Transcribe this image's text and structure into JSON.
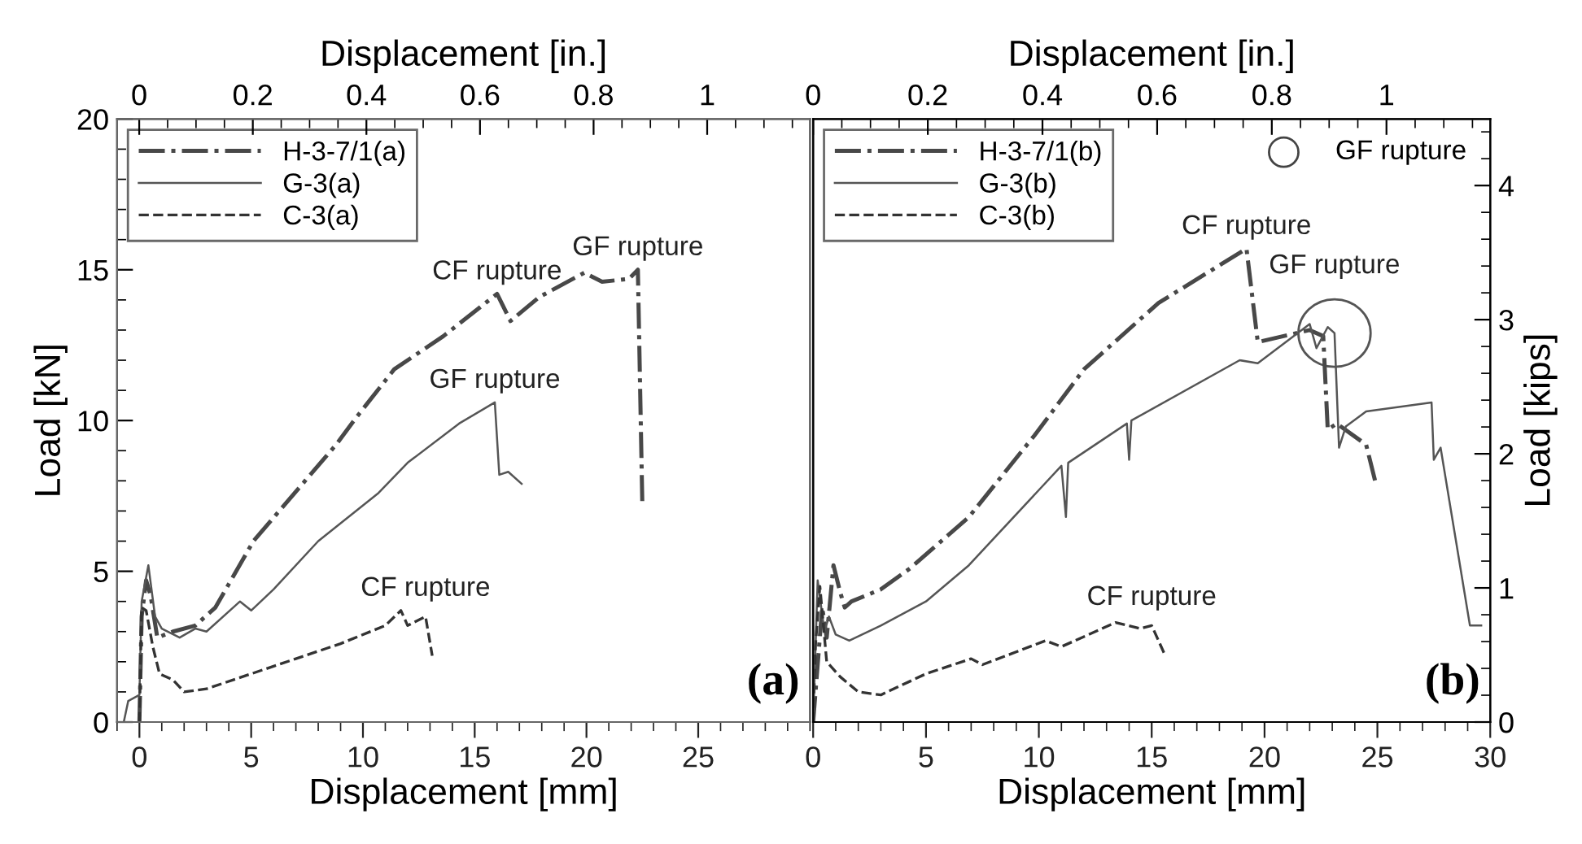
{
  "chart_data": [
    {
      "type": "line",
      "xlabel": "Displacement [mm]",
      "ylabel": "Load [kN]",
      "x2label": "Displacement [in.]",
      "xlim": [
        -1,
        30
      ],
      "xticks": [
        0,
        5,
        10,
        15,
        20,
        25
      ],
      "ylim": [
        0,
        20
      ],
      "yticks": [
        0,
        5,
        10,
        15,
        20
      ],
      "x2lim": [
        -0.039,
        1.181
      ],
      "x2ticks": [
        0,
        0.2,
        0.4,
        0.6,
        0.8,
        1
      ],
      "grid": false,
      "legend": "top left",
      "marker": "none",
      "series": [
        {
          "name": "H-3-7/1(a)",
          "color": "#484848",
          "line_style": "dashdot",
          "x": [
            0,
            0.1,
            0.3,
            0.5,
            0.8,
            1.5,
            2.5,
            3.4,
            5.1,
            8.8,
            9.7,
            11.4,
            13.6,
            16.0,
            16.6,
            17.9,
            19.9,
            20.7,
            21.9,
            22.3,
            22.5
          ],
          "values": [
            0,
            3.5,
            4.7,
            4.2,
            2.8,
            3.0,
            3.2,
            3.8,
            6.0,
            9.2,
            10.1,
            11.7,
            12.8,
            14.2,
            13.3,
            14.1,
            14.9,
            14.6,
            14.7,
            15.0,
            7.2
          ]
        },
        {
          "name": "G-3(a)",
          "color": "#555555",
          "line_style": "solid",
          "x": [
            -0.7,
            -0.5,
            0,
            0.1,
            0.4,
            0.7,
            1,
            1.8,
            2.5,
            3,
            4.5,
            5,
            6,
            8,
            10.7,
            12,
            14.3,
            15.9,
            16.1,
            16.5,
            17.1
          ],
          "values": [
            0,
            0.7,
            0.9,
            4.0,
            5.2,
            3.5,
            3.1,
            2.8,
            3.1,
            3.0,
            4.0,
            3.7,
            4.4,
            6.0,
            7.6,
            8.6,
            9.9,
            10.6,
            8.2,
            8.3,
            7.9
          ]
        },
        {
          "name": "C-3(a)",
          "color": "#333333",
          "line_style": "dashed",
          "x": [
            0,
            0.1,
            0.3,
            0.6,
            0.9,
            1.5,
            2,
            3,
            5,
            7,
            9,
            11,
            11.7,
            12,
            12.8,
            13.1
          ],
          "values": [
            0,
            3.8,
            3.7,
            2.5,
            1.6,
            1.4,
            1.0,
            1.1,
            1.6,
            2.1,
            2.6,
            3.2,
            3.7,
            3.2,
            3.5,
            2.2
          ]
        }
      ],
      "annotations": [
        {
          "text": "CF rupture",
          "x": 16.0,
          "y": 14.2
        },
        {
          "text": "GF rupture",
          "x": 22.3,
          "y": 15.0
        },
        {
          "text": "GF rupture",
          "x": 15.9,
          "y": 10.6
        },
        {
          "text": "CF rupture",
          "x": 12.8,
          "y": 3.7
        },
        "(a)"
      ]
    },
    {
      "type": "line",
      "xlabel": "Displacement [mm]",
      "y2label": "Load [kips]",
      "x2label": "Displacement [in.]",
      "xlim": [
        0,
        30
      ],
      "xticks": [
        0,
        5,
        10,
        15,
        20,
        25,
        30
      ],
      "ylim": [
        0,
        20
      ],
      "y2lim": [
        0,
        4.496
      ],
      "y2ticks": [
        0,
        1,
        2,
        3,
        4
      ],
      "x2lim": [
        0,
        1.181
      ],
      "x2ticks": [
        0,
        0.2,
        0.4,
        0.6,
        0.8,
        1
      ],
      "tick_labels": [
        "x",
        "x2",
        "y2"
      ],
      "grid": false,
      "legend": "top left",
      "marker": "none",
      "series": [
        {
          "name": "H-3-7/1(b)",
          "color": "#484848",
          "line_style": "dashdot",
          "x": [
            0,
            0.4,
            0.6,
            0.9,
            1.2,
            1.4,
            1.7,
            3,
            4.3,
            6.9,
            9.8,
            12.0,
            15.3,
            19.2,
            19.7,
            22.0,
            22.6,
            22.8,
            23.2,
            24.5,
            24.9
          ],
          "values": [
            0,
            3.8,
            2.8,
            5.2,
            4.3,
            3.8,
            4.0,
            4.4,
            5.1,
            6.8,
            9.5,
            11.7,
            13.9,
            15.7,
            12.6,
            13.0,
            12.8,
            9.7,
            9.9,
            9.2,
            8.0
          ]
        },
        {
          "name": "G-3(b)",
          "color": "#555555",
          "line_style": "solid",
          "x": [
            0,
            0.2,
            0.5,
            0.7,
            1,
            1.6,
            3,
            5,
            6.9,
            11.0,
            11.2,
            11.3,
            13.9,
            14.0,
            14.1,
            18.9,
            19.7,
            22.0,
            22.3,
            22.8,
            23.1,
            23.3,
            23.6,
            24.5,
            27.4,
            27.5,
            27.8,
            29.1,
            29.6
          ],
          "values": [
            0,
            4.7,
            3.0,
            3.5,
            2.9,
            2.7,
            3.2,
            4.0,
            5.2,
            8.5,
            6.8,
            8.6,
            9.9,
            8.7,
            10.0,
            12.0,
            11.9,
            13.2,
            12.4,
            13.1,
            12.9,
            9.1,
            9.8,
            10.3,
            10.6,
            8.7,
            9.1,
            3.2,
            3.2
          ]
        },
        {
          "name": "C-3(b)",
          "color": "#333333",
          "line_style": "dashed",
          "x": [
            0,
            0.1,
            0.3,
            0.6,
            1.2,
            2,
            3,
            5,
            7,
            7.5,
            10.3,
            11,
            13.4,
            14.5,
            15,
            15.6
          ],
          "values": [
            0,
            2.5,
            4.5,
            2.0,
            1.5,
            1.0,
            0.9,
            1.6,
            2.1,
            1.9,
            2.7,
            2.5,
            3.3,
            3.1,
            3.2,
            2.2
          ]
        }
      ],
      "annotations": [
        {
          "text": "CF rupture",
          "x": 19.2,
          "y": 15.7
        },
        {
          "text": "GF rupture",
          "x": 23.1,
          "y": 12.9
        },
        {
          "text": "CF rupture",
          "x": 15.0,
          "y": 3.4
        },
        "GF rupture",
        "(b)"
      ]
    }
  ]
}
